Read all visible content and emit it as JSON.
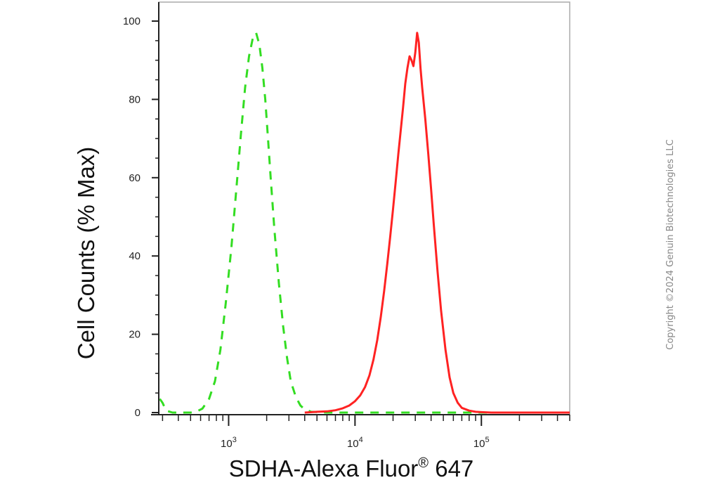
{
  "chart_data": {
    "type": "line",
    "xlabel": "SDHA-Alexa Fluor",
    "xlabel_sup": "®",
    "xlabel_suffix": " 647",
    "ylabel": "Cell Counts (% Max)",
    "xscale": "log",
    "xlim": [
      280,
      500000
    ],
    "ylim": [
      0,
      100
    ],
    "x_major_ticks": [
      {
        "value": 1000,
        "base": "10",
        "exp": "3"
      },
      {
        "value": 10000,
        "base": "10",
        "exp": "4"
      },
      {
        "value": 100000,
        "base": "10",
        "exp": "5"
      }
    ],
    "y_ticks": [
      {
        "value": 0,
        "label": "0"
      },
      {
        "value": 20,
        "label": "20"
      },
      {
        "value": 40,
        "label": "40"
      },
      {
        "value": 60,
        "label": "60"
      },
      {
        "value": 80,
        "label": "80"
      },
      {
        "value": 100,
        "label": "100"
      }
    ],
    "grid": false,
    "legend": "none",
    "series": [
      {
        "style": "dashed",
        "color": "#33dd22",
        "x": [
          285,
          300,
          320,
          360,
          420,
          500,
          560,
          620,
          700,
          780,
          860,
          950,
          1050,
          1150,
          1250,
          1350,
          1450,
          1550,
          1650,
          1750,
          1850,
          1950,
          2050,
          2150,
          2300,
          2500,
          2700,
          2900,
          3100,
          3400,
          3700,
          4000,
          4500,
          6000,
          10000,
          20000,
          50000,
          100000,
          200000,
          500000
        ],
        "y": [
          3.5,
          2.5,
          0.5,
          0,
          0,
          0,
          0.3,
          1,
          3.5,
          8,
          16,
          28,
          42,
          57,
          71,
          83,
          91,
          95.5,
          97,
          94,
          88,
          80,
          70,
          60,
          47,
          33,
          22,
          14,
          8,
          4,
          1.8,
          0.8,
          0.2,
          0,
          0,
          0,
          0,
          0,
          0,
          0
        ]
      },
      {
        "style": "solid",
        "color": "#ff2222",
        "x": [
          4000,
          5000,
          6000,
          7000,
          8000,
          9000,
          10000,
          11000,
          12000,
          13000,
          14000,
          15000,
          16000,
          17000,
          18000,
          19000,
          20000,
          21000,
          22000,
          23000,
          24000,
          25000,
          26000,
          27000,
          28000,
          29000,
          30000,
          31000,
          32000,
          33000,
          34000,
          36000,
          38000,
          40000,
          42000,
          45000,
          48000,
          52000,
          56000,
          60000,
          65000,
          70000,
          80000,
          90000,
          100000,
          120000,
          150000,
          200000,
          300000,
          500000
        ],
        "y": [
          0,
          0.2,
          0.3,
          0.6,
          1.1,
          1.8,
          2.9,
          4.4,
          6.5,
          9.5,
          13.5,
          18.5,
          24.5,
          31,
          38,
          45,
          52,
          59,
          66,
          72,
          78,
          84,
          88,
          91,
          90,
          88.5,
          92,
          97,
          94.5,
          88,
          83,
          75,
          66,
          57,
          48,
          36,
          26,
          16,
          9,
          5,
          2.5,
          1.2,
          0.5,
          0.2,
          0.1,
          0,
          0,
          0,
          0,
          0
        ]
      }
    ]
  },
  "copyright": "Copyright ©2024 Genuin Biotechnologies LLC"
}
